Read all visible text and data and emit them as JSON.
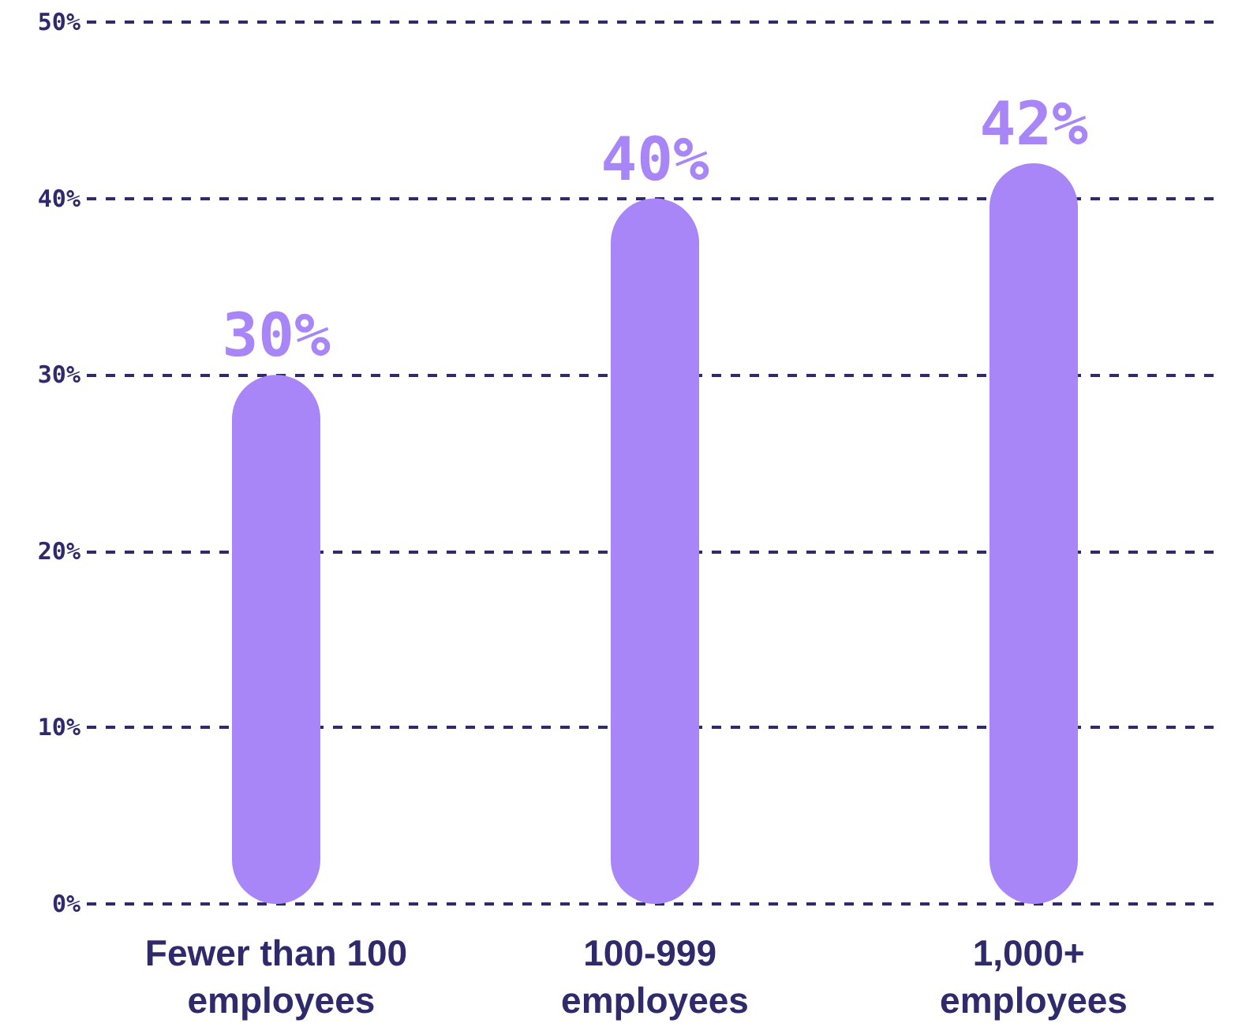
{
  "chart_data": {
    "type": "bar",
    "categories": [
      "Fewer than 100 employees",
      "100-999 employees",
      "1,000+ employees"
    ],
    "values": [
      30,
      40,
      42
    ],
    "color": "#a886f7",
    "value_labels": [
      "30%",
      "40%",
      "42%"
    ],
    "ylim": [
      0,
      50
    ],
    "yticks": [
      {
        "value": 0,
        "label": "0%"
      },
      {
        "value": 10,
        "label": "10%"
      },
      {
        "value": 20,
        "label": "20%"
      },
      {
        "value": 30,
        "label": "30%"
      },
      {
        "value": 40,
        "label": "40%"
      },
      {
        "value": 50,
        "label": "50%"
      }
    ],
    "grid": "y"
  }
}
